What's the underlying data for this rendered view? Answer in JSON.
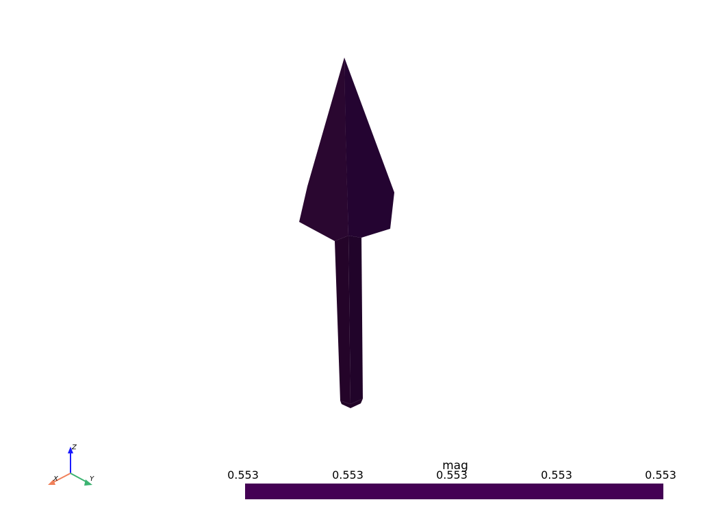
{
  "scene": {
    "mesh_name": "arrow",
    "mesh_color_light": "#2a0733",
    "mesh_color_dark": "#220428",
    "background": "#ffffff"
  },
  "orientation_axes": {
    "x": {
      "label": "X",
      "color": "#f0805a"
    },
    "y": {
      "label": "Y",
      "color": "#3cb371"
    },
    "z": {
      "label": "Z",
      "color": "#1a1aff"
    }
  },
  "scalar_bar": {
    "title": "mag",
    "ticks": [
      "0.553",
      "0.553",
      "0.553",
      "0.553",
      "0.553"
    ],
    "color": "#440154"
  }
}
